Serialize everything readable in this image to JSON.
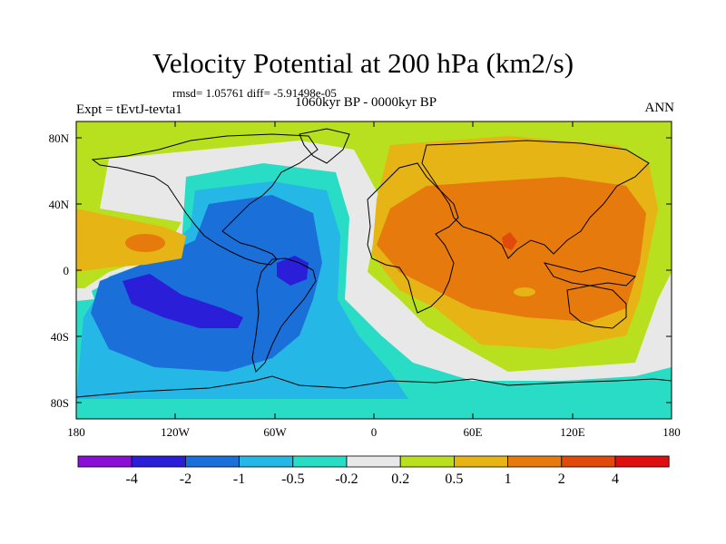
{
  "figure": {
    "title": "Velocity Potential at 200 hPa (km2/s)",
    "stats": "rmsd= 1.05761 diff= -5.91498e-05",
    "experiment": "Expt = tEvtJ-tevta1",
    "period": "1060kyr BP - 0000kyr BP",
    "season": "ANN"
  },
  "axes": {
    "lat_labels": [
      "80N",
      "40N",
      "0",
      "40S",
      "80S"
    ],
    "lon_labels": [
      "180",
      "120W",
      "60W",
      "0",
      "60E",
      "120E",
      "180"
    ]
  },
  "colorbar": {
    "labels": [
      "-4",
      "-2",
      "-1",
      "-0.5",
      "-0.2",
      "0.2",
      "0.5",
      "1",
      "2",
      "4"
    ],
    "colors": [
      "#8a0fd6",
      "#2a1ed8",
      "#1a6fd8",
      "#25b8e6",
      "#29dcc6",
      "#e8e8e8",
      "#b8e01e",
      "#e6b414",
      "#e67a0c",
      "#e04a0c",
      "#e00f0f"
    ]
  }
}
